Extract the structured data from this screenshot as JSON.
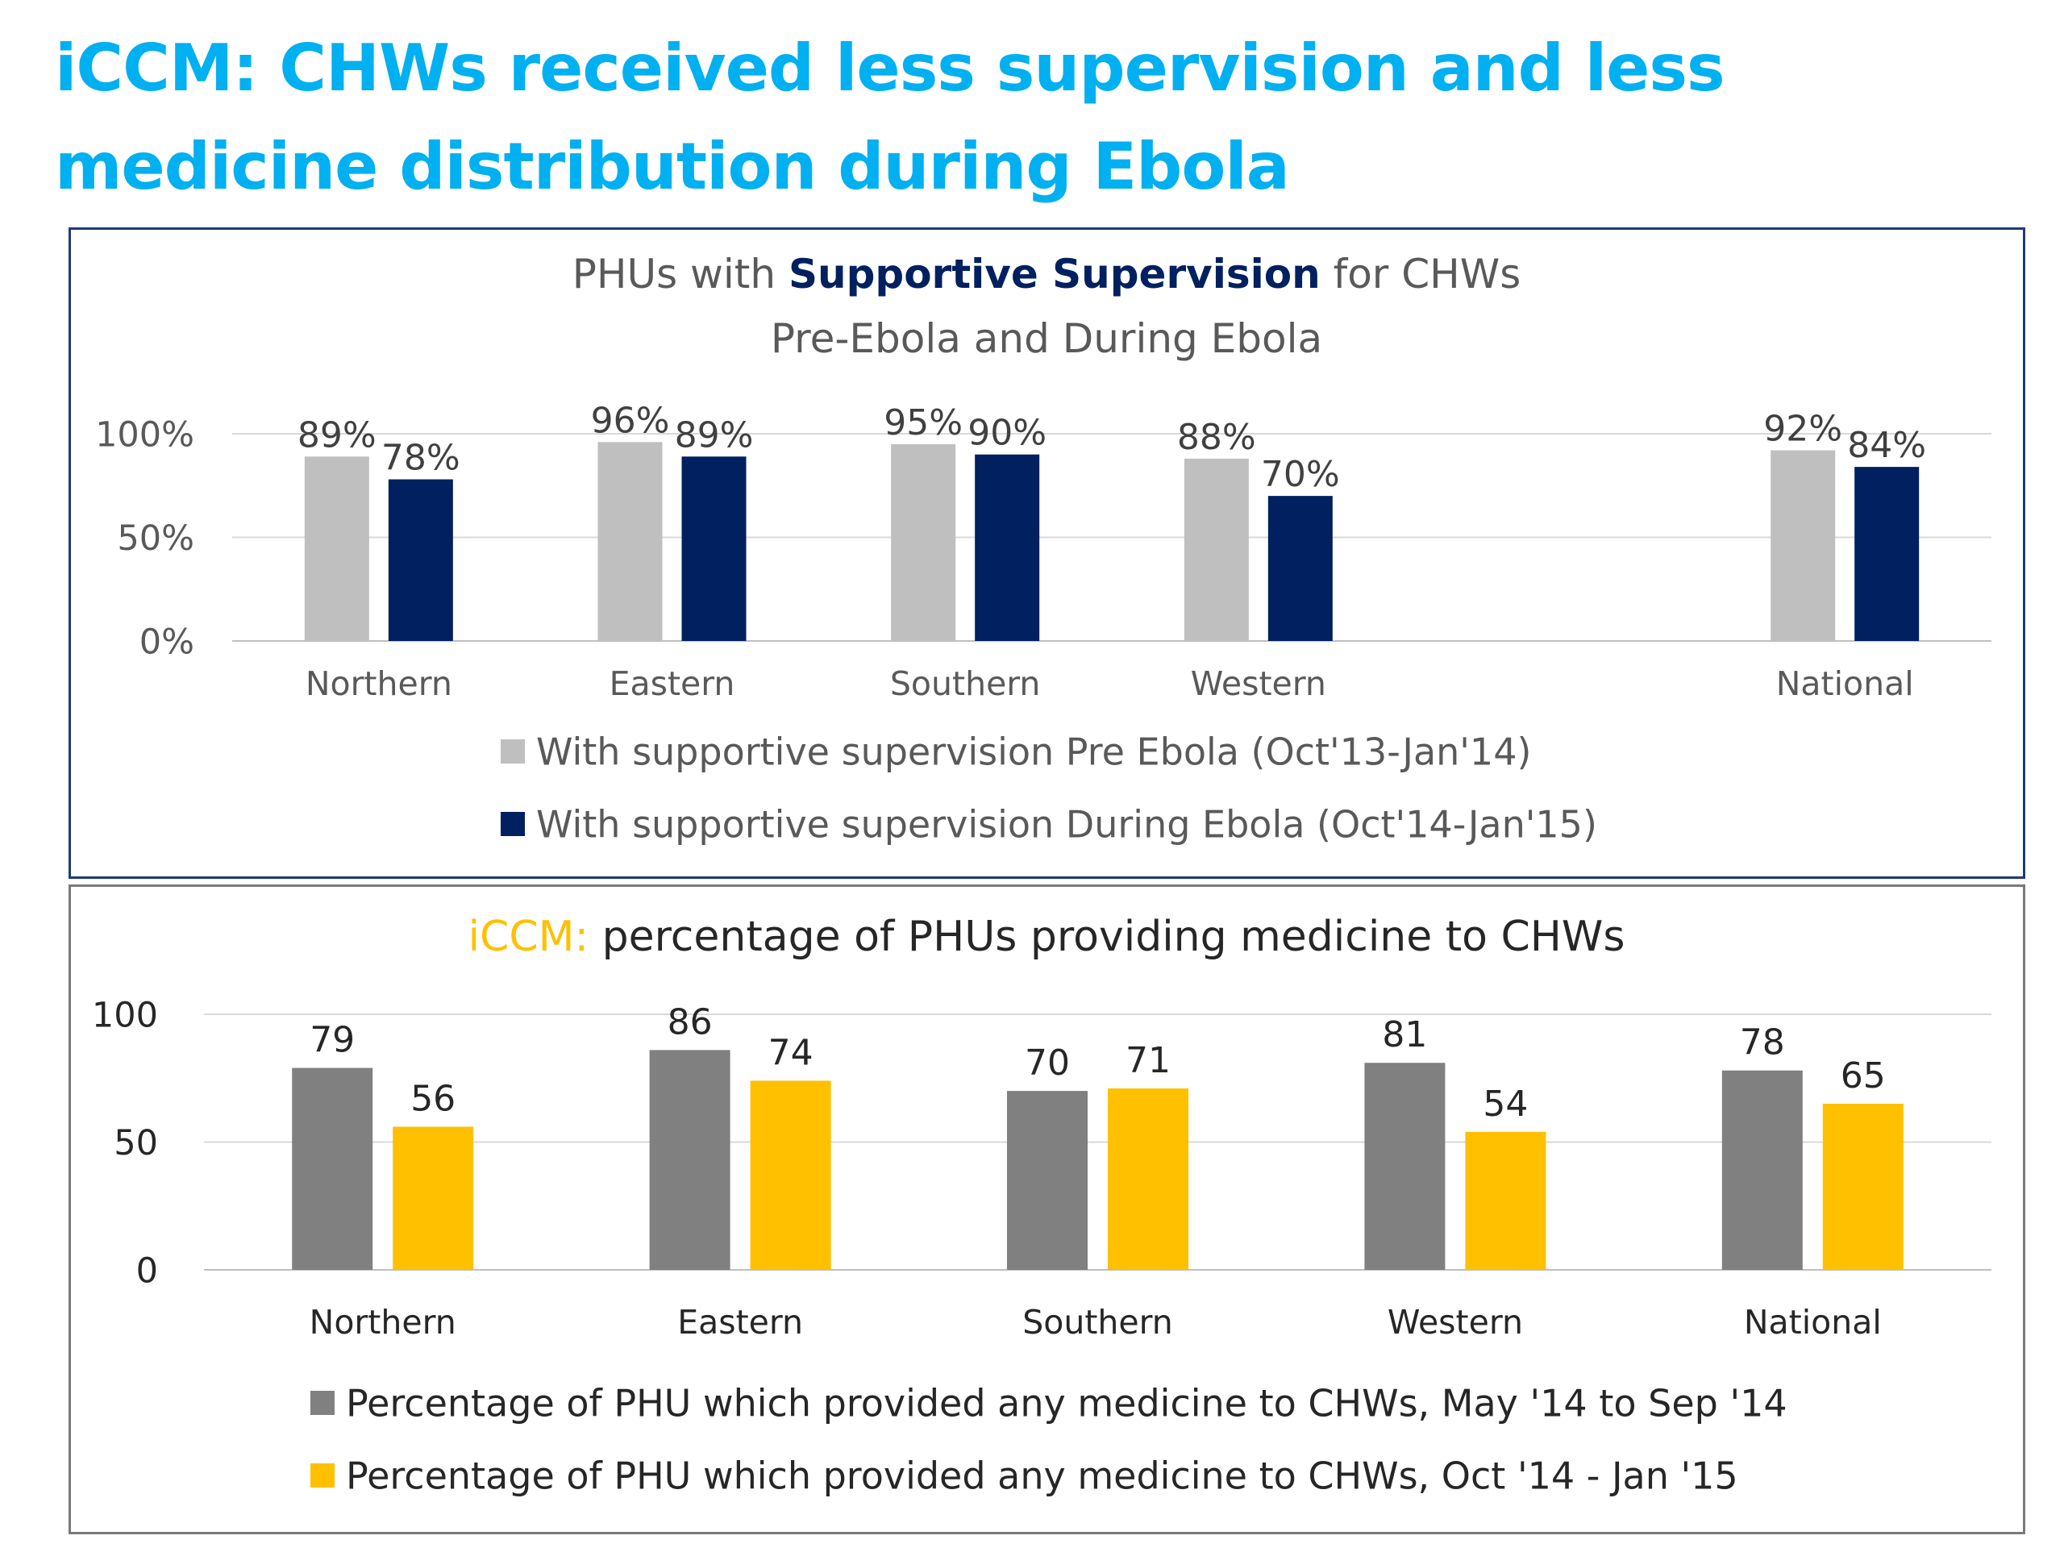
{
  "page": {
    "title_line1": "iCCM: CHWs received less supervision and less",
    "title_line2": "medicine distribution during Ebola"
  },
  "colors": {
    "title": "#00b0f0",
    "navy": "#002060",
    "light_gray": "#bfbfbf",
    "dark_gray": "#808080",
    "gold": "#ffc000",
    "axis_text": "#595959",
    "gridline": "#d9d9d9"
  },
  "chart_data": [
    {
      "type": "bar",
      "title_parts": [
        "PHUs with ",
        "Supportive Supervision",
        " for CHWs"
      ],
      "subtitle": "Pre-Ebola  and During Ebola",
      "categories": [
        "Northern",
        "Eastern",
        "Southern",
        "Western",
        "",
        "National"
      ],
      "series": [
        {
          "name": "With supportive supervision Pre Ebola (Oct'13-Jan'14)",
          "color": "#bfbfbf",
          "values": [
            89,
            96,
            95,
            88,
            null,
            92
          ],
          "labels": [
            "89%",
            "96%",
            "95%",
            "88%",
            "",
            "92%"
          ]
        },
        {
          "name": "With supportive supervision During Ebola (Oct'14-Jan'15)",
          "color": "#002060",
          "values": [
            78,
            89,
            90,
            70,
            null,
            84
          ],
          "labels": [
            "78%",
            "89%",
            "90%",
            "70%",
            "",
            "84%"
          ]
        }
      ],
      "yticks": [
        "0%",
        "50%",
        "100%"
      ],
      "ylim": [
        0,
        100
      ],
      "grid": true,
      "legend_position": "bottom"
    },
    {
      "type": "bar",
      "title_parts": [
        "iCCM",
        ": ",
        "percentage of PHUs providing medicine to CHWs"
      ],
      "categories": [
        "Northern",
        "Eastern",
        "Southern",
        "Western",
        "National"
      ],
      "series": [
        {
          "name": "Percentage of PHU which provided any medicine to CHWs, May '14 to Sep '14",
          "color": "#808080",
          "values": [
            79,
            86,
            70,
            81,
            78
          ],
          "labels": [
            "79",
            "86",
            "70",
            "81",
            "78"
          ]
        },
        {
          "name": "Percentage of PHU which provided any medicine to CHWs, Oct '14 - Jan '15",
          "color": "#ffc000",
          "values": [
            56,
            74,
            71,
            54,
            65
          ],
          "labels": [
            "56",
            "74",
            "71",
            "54",
            "65"
          ]
        }
      ],
      "yticks": [
        "0",
        "50",
        "100"
      ],
      "ylim": [
        0,
        100
      ],
      "grid": true,
      "legend_position": "bottom"
    }
  ]
}
